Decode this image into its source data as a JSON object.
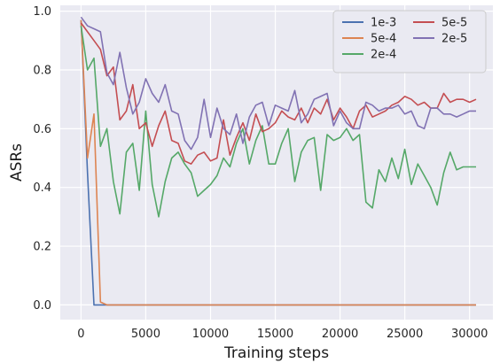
{
  "chart_data": {
    "type": "line",
    "title": "",
    "xlabel": "Training steps",
    "ylabel": "ASRs",
    "xlim": [
      -1600,
      31800
    ],
    "ylim": [
      -0.05,
      1.02
    ],
    "xticks": [
      0,
      5000,
      10000,
      15000,
      20000,
      25000,
      30000
    ],
    "xtick_labels": [
      "0",
      "5000",
      "10000",
      "15000",
      "20000",
      "25000",
      "30000"
    ],
    "yticks": [
      0.0,
      0.2,
      0.4,
      0.6,
      0.8,
      1.0
    ],
    "ytick_labels": [
      "0.0",
      "0.2",
      "0.4",
      "0.6",
      "0.8",
      "1.0"
    ],
    "grid": true,
    "legend_position": "top-right",
    "legend_columns": 2,
    "series": [
      {
        "name": "1e-3",
        "color": "#4c72b0",
        "x": [
          0,
          500,
          1000,
          1500,
          2000,
          30500
        ],
        "y": [
          0.97,
          0.45,
          0.0,
          0.0,
          0.0,
          0.0
        ]
      },
      {
        "name": "5e-4",
        "color": "#dd8452",
        "x": [
          0,
          500,
          1000,
          1500,
          2000,
          30500
        ],
        "y": [
          0.97,
          0.5,
          0.65,
          0.01,
          0.0,
          0.0
        ]
      },
      {
        "name": "2e-4",
        "color": "#55a868",
        "x": [
          0,
          500,
          1000,
          1500,
          2000,
          2500,
          3000,
          3500,
          4000,
          4500,
          5000,
          5500,
          6000,
          6500,
          7000,
          7500,
          8000,
          8500,
          9000,
          9500,
          10000,
          10500,
          11000,
          11500,
          12000,
          12500,
          13000,
          13500,
          14000,
          14500,
          15000,
          15500,
          16000,
          16500,
          17000,
          17500,
          18000,
          18500,
          19000,
          19500,
          20000,
          20500,
          21000,
          21500,
          22000,
          22500,
          23000,
          23500,
          24000,
          24500,
          25000,
          25500,
          26000,
          26500,
          27000,
          27500,
          28000,
          28500,
          29000,
          29500,
          30000,
          30500
        ],
        "y": [
          0.95,
          0.8,
          0.84,
          0.54,
          0.6,
          0.42,
          0.31,
          0.52,
          0.55,
          0.39,
          0.66,
          0.41,
          0.3,
          0.42,
          0.5,
          0.52,
          0.48,
          0.45,
          0.37,
          0.39,
          0.41,
          0.44,
          0.5,
          0.47,
          0.55,
          0.6,
          0.48,
          0.56,
          0.61,
          0.48,
          0.48,
          0.55,
          0.6,
          0.42,
          0.52,
          0.56,
          0.57,
          0.39,
          0.58,
          0.56,
          0.57,
          0.6,
          0.56,
          0.58,
          0.35,
          0.33,
          0.46,
          0.42,
          0.5,
          0.43,
          0.53,
          0.41,
          0.48,
          0.44,
          0.4,
          0.34,
          0.45,
          0.52,
          0.46,
          0.47,
          0.47,
          0.47
        ]
      },
      {
        "name": "5e-5",
        "color": "#c44e52",
        "x": [
          0,
          500,
          1000,
          1500,
          2000,
          2500,
          3000,
          3500,
          4000,
          4500,
          5000,
          5500,
          6000,
          6500,
          7000,
          7500,
          8000,
          8500,
          9000,
          9500,
          10000,
          10500,
          11000,
          11500,
          12000,
          12500,
          13000,
          13500,
          14000,
          14500,
          15000,
          15500,
          16000,
          16500,
          17000,
          17500,
          18000,
          18500,
          19000,
          19500,
          20000,
          20500,
          21000,
          21500,
          22000,
          22500,
          23000,
          23500,
          24000,
          24500,
          25000,
          25500,
          26000,
          26500,
          27000,
          27500,
          28000,
          28500,
          29000,
          29500,
          30000,
          30500
        ],
        "y": [
          0.96,
          0.93,
          0.9,
          0.87,
          0.78,
          0.81,
          0.63,
          0.66,
          0.75,
          0.6,
          0.62,
          0.54,
          0.61,
          0.66,
          0.56,
          0.55,
          0.49,
          0.48,
          0.51,
          0.52,
          0.49,
          0.5,
          0.63,
          0.51,
          0.57,
          0.62,
          0.56,
          0.65,
          0.59,
          0.6,
          0.62,
          0.66,
          0.64,
          0.63,
          0.67,
          0.62,
          0.67,
          0.65,
          0.7,
          0.63,
          0.67,
          0.64,
          0.6,
          0.66,
          0.68,
          0.64,
          0.65,
          0.66,
          0.68,
          0.69,
          0.71,
          0.7,
          0.68,
          0.69,
          0.67,
          0.67,
          0.72,
          0.69,
          0.7,
          0.7,
          0.69,
          0.7
        ]
      },
      {
        "name": "2e-5",
        "color": "#8172b3",
        "x": [
          0,
          500,
          1000,
          1500,
          2000,
          2500,
          3000,
          3500,
          4000,
          4500,
          5000,
          5500,
          6000,
          6500,
          7000,
          7500,
          8000,
          8500,
          9000,
          9500,
          10000,
          10500,
          11000,
          11500,
          12000,
          12500,
          13000,
          13500,
          14000,
          14500,
          15000,
          15500,
          16000,
          16500,
          17000,
          17500,
          18000,
          18500,
          19000,
          19500,
          20000,
          20500,
          21000,
          21500,
          22000,
          22500,
          23000,
          23500,
          24000,
          24500,
          25000,
          25500,
          26000,
          26500,
          27000,
          27500,
          28000,
          28500,
          29000,
          29500,
          30000,
          30500
        ],
        "y": [
          0.98,
          0.95,
          0.94,
          0.93,
          0.79,
          0.75,
          0.86,
          0.74,
          0.65,
          0.69,
          0.77,
          0.72,
          0.69,
          0.75,
          0.66,
          0.65,
          0.56,
          0.53,
          0.57,
          0.7,
          0.57,
          0.67,
          0.6,
          0.58,
          0.65,
          0.55,
          0.64,
          0.68,
          0.69,
          0.61,
          0.68,
          0.67,
          0.66,
          0.73,
          0.62,
          0.65,
          0.7,
          0.71,
          0.72,
          0.61,
          0.66,
          0.62,
          0.6,
          0.6,
          0.69,
          0.68,
          0.66,
          0.67,
          0.67,
          0.68,
          0.65,
          0.66,
          0.61,
          0.6,
          0.67,
          0.67,
          0.65,
          0.65,
          0.64,
          0.65,
          0.66,
          0.66
        ]
      }
    ]
  },
  "style": {
    "plot_background": "#eaeaf2",
    "grid_color": "#ffffff",
    "legend_background": "#eaeaf2",
    "legend_border": "#cccccc"
  }
}
